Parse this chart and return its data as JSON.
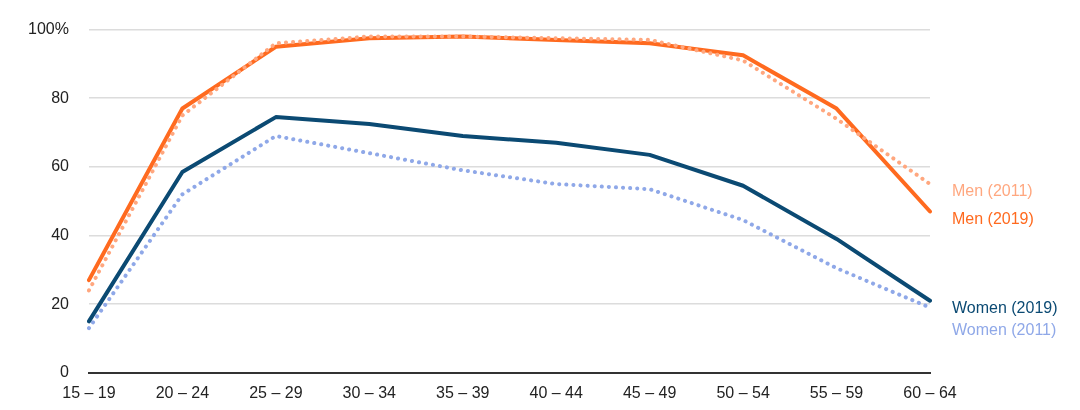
{
  "chart_data": {
    "type": "line",
    "categories": [
      "15 – 19",
      "20 – 24",
      "25 – 29",
      "30 – 34",
      "35 – 39",
      "40 – 44",
      "45 – 49",
      "50 – 54",
      "55 – 59",
      "60 – 64"
    ],
    "series": [
      {
        "name": "Men (2011)",
        "color": "#ffa77f",
        "line_style": "dotted",
        "values": [
          24,
          75,
          96,
          98,
          98,
          97.5,
          97,
          91,
          74,
          55
        ]
      },
      {
        "name": "Men (2019)",
        "color": "#ff6a1f",
        "line_style": "solid",
        "values": [
          27,
          77,
          95,
          97.5,
          98,
          97,
          96,
          92.5,
          77,
          47
        ]
      },
      {
        "name": "Women (2019)",
        "color": "#0b4a73",
        "line_style": "solid",
        "values": [
          15,
          58.5,
          74.5,
          72.5,
          69,
          67,
          63.5,
          54.5,
          39,
          21
        ]
      },
      {
        "name": "Women (2011)",
        "color": "#8fa8e8",
        "line_style": "dotted",
        "values": [
          13,
          52,
          69,
          64,
          59,
          55,
          53.5,
          44.5,
          30.5,
          19
        ]
      }
    ],
    "ylim": [
      0,
      100
    ],
    "yticks": [
      0,
      20,
      40,
      60,
      80,
      {
        "value": 100,
        "label": "100%"
      }
    ],
    "grid": "y",
    "legend": false,
    "marker": "none"
  }
}
